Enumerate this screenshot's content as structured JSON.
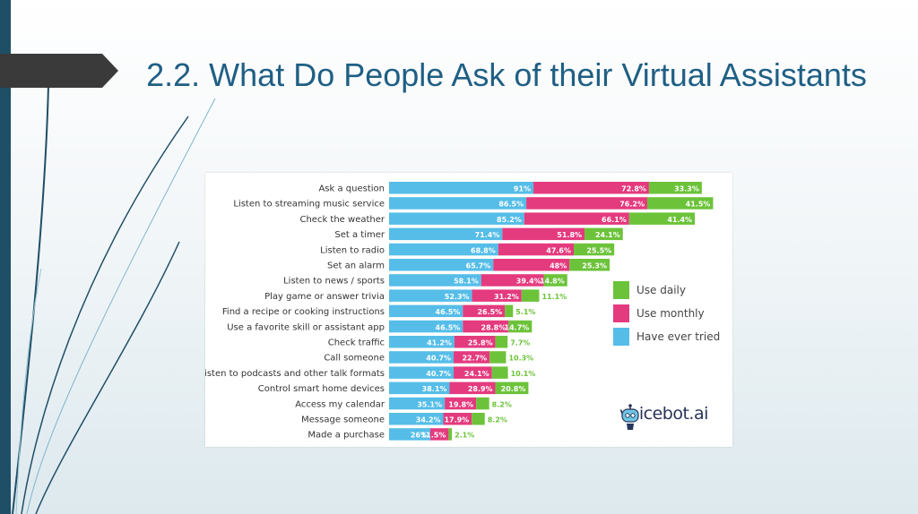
{
  "slide": {
    "title": "2.2. What Do People Ask of their Virtual Assistants"
  },
  "colors": {
    "rail": "#1f4e67",
    "banner": "#3a3a3a",
    "title": "#1f5f84",
    "have_ever_tried": "#55bde8",
    "use_monthly": "#e43a7e",
    "use_daily": "#6cc33a"
  },
  "legend": [
    {
      "key": "use_daily",
      "label": "Use daily"
    },
    {
      "key": "use_monthly",
      "label": "Use monthly"
    },
    {
      "key": "have_ever_tried",
      "label": "Have ever tried"
    }
  ],
  "brand": {
    "name": "voicebot",
    "suffix": ".ai",
    "icon": "robot-icon"
  },
  "chart_data": {
    "type": "bar",
    "orientation": "horizontal",
    "grid": false,
    "xlim": [
      0,
      100
    ],
    "legend_position": "right",
    "categories": [
      "Ask a question",
      "Listen to streaming music service",
      "Check the weather",
      "Set a timer",
      "Listen to radio",
      "Set an alarm",
      "Listen to news / sports",
      "Play game or answer trivia",
      "Find a recipe or cooking instructions",
      "Use a favorite skill or assistant app",
      "Check traffic",
      "Call someone",
      "Listen to podcasts and other talk formats",
      "Control smart home devices",
      "Access my calendar",
      "Message someone",
      "Made a purchase"
    ],
    "series": [
      {
        "name": "Have ever tried",
        "values": [
          91,
          86.5,
          85.2,
          71.4,
          68.8,
          65.7,
          58.1,
          52.3,
          46.5,
          46.5,
          41.2,
          40.7,
          40.7,
          38.1,
          35.1,
          34.2,
          26
        ],
        "labels": [
          "91%",
          "86.5%",
          "85.2%",
          "71.4%",
          "68.8%",
          "65.7%",
          "58.1%",
          "52.3%",
          "46.5%",
          "46.5%",
          "41.2%",
          "40.7%",
          "40.7%",
          "38.1%",
          "35.1%",
          "34.2%",
          "26%"
        ]
      },
      {
        "name": "Use monthly",
        "values": [
          72.8,
          76.2,
          66.1,
          51.8,
          47.6,
          48,
          39.4,
          31.2,
          26.5,
          28.8,
          25.8,
          22.7,
          24.1,
          28.9,
          19.8,
          17.9,
          11.5
        ],
        "labels": [
          "72.8%",
          "76.2%",
          "66.1%",
          "51.8%",
          "47.6%",
          "48%",
          "39.4%",
          "31.2%",
          "26.5%",
          "28.8%",
          "25.8%",
          "22.7%",
          "24.1%",
          "28.9%",
          "19.8%",
          "17.9%",
          "11.5%"
        ]
      },
      {
        "name": "Use daily",
        "values": [
          33.3,
          41.5,
          41.4,
          24.1,
          25.5,
          25.3,
          14.8,
          11.1,
          5.1,
          14.7,
          7.7,
          10.3,
          10.1,
          20.8,
          8.2,
          8.2,
          2.1
        ],
        "labels": [
          "33.3%",
          "41.5%",
          "41.4%",
          "24.1%",
          "25.5%",
          "25.3%",
          "14.8%",
          "11.1%",
          "5.1%",
          "14.7%",
          "7.7%",
          "10.3%",
          "10.1%",
          "20.8%",
          "8.2%",
          "8.2%",
          "2.1%"
        ]
      }
    ]
  }
}
